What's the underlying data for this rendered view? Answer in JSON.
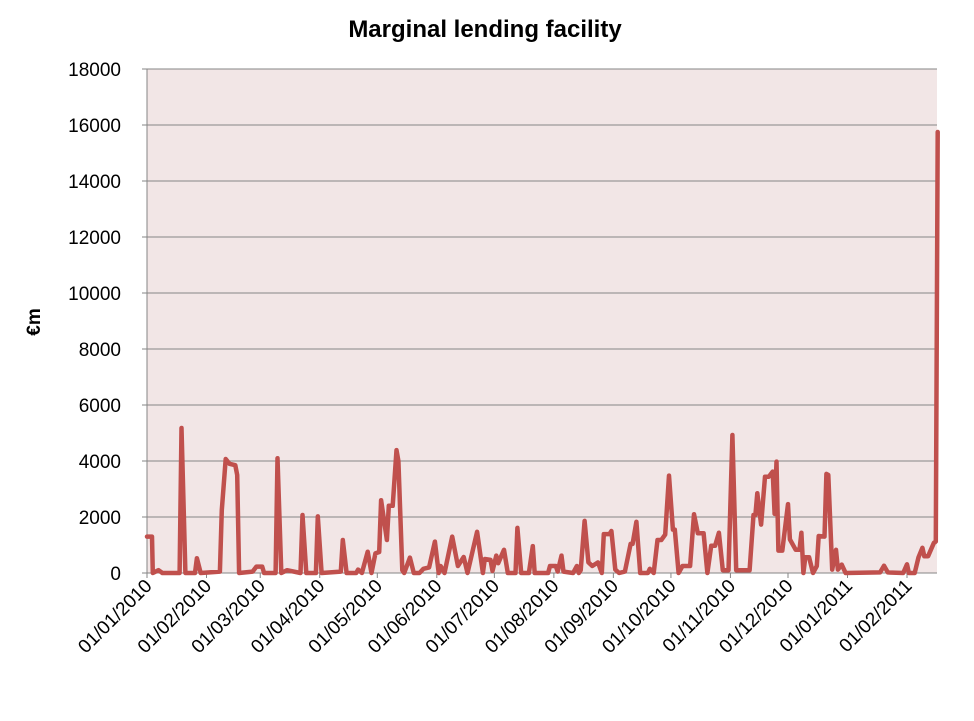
{
  "chart_data": {
    "type": "line",
    "title": "Marginal lending facility",
    "xlabel": "",
    "ylabel": "€m",
    "ylim": [
      0,
      18000
    ],
    "yticks": [
      0,
      2000,
      4000,
      6000,
      8000,
      10000,
      12000,
      14000,
      16000,
      18000
    ],
    "x_start_date": "2010-01-01",
    "x_unit": "days since 01/01/2010",
    "xlim": [
      0,
      412
    ],
    "xtick_days": [
      0,
      31,
      59,
      90,
      120,
      151,
      181,
      212,
      243,
      273,
      304,
      334,
      365,
      396
    ],
    "xtick_labels": [
      "01/01/2010",
      "01/02/2010",
      "01/03/2010",
      "01/04/2010",
      "01/05/2010",
      "01/06/2010",
      "01/07/2010",
      "01/08/2010",
      "01/09/2010",
      "01/10/2010",
      "01/11/2010",
      "01/12/2010",
      "01/01/2011",
      "01/02/2011"
    ],
    "grid": "horizontal",
    "legend": "none",
    "colors": {
      "line": "#C0504D",
      "plot_bg": "#F2E6E6",
      "grid": "#868686"
    },
    "series": [
      {
        "name": "Marginal lending facility",
        "points": [
          [
            0,
            1300
          ],
          [
            2.6,
            1300
          ],
          [
            3,
            0
          ],
          [
            6,
            100
          ],
          [
            8,
            0
          ],
          [
            17,
            0
          ],
          [
            18,
            5180
          ],
          [
            20,
            0
          ],
          [
            25,
            0
          ],
          [
            26,
            530
          ],
          [
            28,
            0
          ],
          [
            38,
            50
          ],
          [
            39,
            2250
          ],
          [
            41,
            4070
          ],
          [
            43,
            3900
          ],
          [
            46,
            3850
          ],
          [
            47,
            3500
          ],
          [
            48,
            0
          ],
          [
            55,
            50
          ],
          [
            57,
            230
          ],
          [
            60,
            230
          ],
          [
            61,
            0
          ],
          [
            67,
            0
          ],
          [
            68,
            4100
          ],
          [
            70,
            0
          ],
          [
            73,
            100
          ],
          [
            80,
            0
          ],
          [
            81,
            2070
          ],
          [
            83,
            0
          ],
          [
            88,
            0
          ],
          [
            89,
            2020
          ],
          [
            91,
            0
          ],
          [
            101,
            50
          ],
          [
            102,
            1180
          ],
          [
            104,
            0
          ],
          [
            109,
            0
          ],
          [
            110,
            120
          ],
          [
            112,
            0
          ],
          [
            115,
            760
          ],
          [
            117,
            0
          ],
          [
            119,
            700
          ],
          [
            121,
            750
          ],
          [
            122,
            2600
          ],
          [
            125,
            1180
          ],
          [
            126,
            2400
          ],
          [
            128,
            2400
          ],
          [
            130,
            4390
          ],
          [
            131,
            4000
          ],
          [
            133,
            100
          ],
          [
            134,
            0
          ],
          [
            137,
            550
          ],
          [
            139,
            0
          ],
          [
            142,
            0
          ],
          [
            144,
            150
          ],
          [
            147,
            200
          ],
          [
            150,
            1120
          ],
          [
            152,
            0
          ],
          [
            153,
            250
          ],
          [
            155,
            0
          ],
          [
            159,
            1300
          ],
          [
            162,
            250
          ],
          [
            165,
            570
          ],
          [
            167,
            0
          ],
          [
            172,
            1470
          ],
          [
            175,
            0
          ],
          [
            176,
            500
          ],
          [
            179,
            470
          ],
          [
            180,
            70
          ],
          [
            182,
            620
          ],
          [
            183,
            350
          ],
          [
            186,
            830
          ],
          [
            188,
            0
          ],
          [
            192,
            0
          ],
          [
            193,
            1610
          ],
          [
            195,
            0
          ],
          [
            199,
            0
          ],
          [
            201,
            960
          ],
          [
            202,
            0
          ],
          [
            209,
            0
          ],
          [
            210,
            250
          ],
          [
            213,
            250
          ],
          [
            214,
            50
          ],
          [
            216,
            620
          ],
          [
            217,
            50
          ],
          [
            222,
            0
          ],
          [
            224,
            250
          ],
          [
            225,
            0
          ],
          [
            226,
            100
          ],
          [
            228,
            1860
          ],
          [
            230,
            380
          ],
          [
            232,
            250
          ],
          [
            235,
            380
          ],
          [
            237,
            0
          ],
          [
            238,
            1390
          ],
          [
            241,
            1390
          ],
          [
            242,
            1500
          ],
          [
            244,
            120
          ],
          [
            246,
            0
          ],
          [
            249,
            50
          ],
          [
            252,
            1040
          ],
          [
            253,
            1040
          ],
          [
            255,
            1830
          ],
          [
            257,
            0
          ],
          [
            261,
            0
          ],
          [
            262,
            150
          ],
          [
            264,
            0
          ],
          [
            266,
            1180
          ],
          [
            268,
            1180
          ],
          [
            270,
            1370
          ],
          [
            272,
            3480
          ],
          [
            274,
            1550
          ],
          [
            275,
            1550
          ],
          [
            277,
            0
          ],
          [
            279,
            250
          ],
          [
            283,
            250
          ],
          [
            285,
            2100
          ],
          [
            287,
            1420
          ],
          [
            290,
            1420
          ],
          [
            292,
            0
          ],
          [
            294,
            970
          ],
          [
            296,
            970
          ],
          [
            298,
            1440
          ],
          [
            300,
            100
          ],
          [
            303,
            100
          ],
          [
            305,
            4930
          ],
          [
            307,
            100
          ],
          [
            314,
            100
          ],
          [
            316,
            2070
          ],
          [
            317,
            2070
          ],
          [
            318,
            2850
          ],
          [
            320,
            1730
          ],
          [
            322,
            3440
          ],
          [
            324,
            3440
          ],
          [
            326,
            3620
          ],
          [
            327,
            2110
          ],
          [
            328,
            3980
          ],
          [
            329,
            800
          ],
          [
            331,
            800
          ],
          [
            334,
            2460
          ],
          [
            335,
            1200
          ],
          [
            338,
            830
          ],
          [
            340,
            830
          ],
          [
            341,
            1440
          ],
          [
            342,
            0
          ],
          [
            343,
            560
          ],
          [
            345,
            560
          ],
          [
            347,
            0
          ],
          [
            349,
            250
          ],
          [
            350,
            1320
          ],
          [
            353,
            1300
          ],
          [
            354,
            3540
          ],
          [
            355,
            3500
          ],
          [
            357,
            120
          ],
          [
            359,
            830
          ],
          [
            360,
            120
          ],
          [
            362,
            300
          ],
          [
            364,
            0
          ],
          [
            382,
            20
          ],
          [
            384,
            260
          ],
          [
            386,
            20
          ],
          [
            394,
            0
          ],
          [
            396,
            310
          ],
          [
            397,
            0
          ],
          [
            400,
            0
          ],
          [
            402,
            560
          ],
          [
            404,
            900
          ],
          [
            405,
            600
          ],
          [
            407,
            600
          ],
          [
            410,
            1080
          ],
          [
            411,
            1120
          ],
          [
            412,
            15750
          ]
        ]
      }
    ]
  }
}
